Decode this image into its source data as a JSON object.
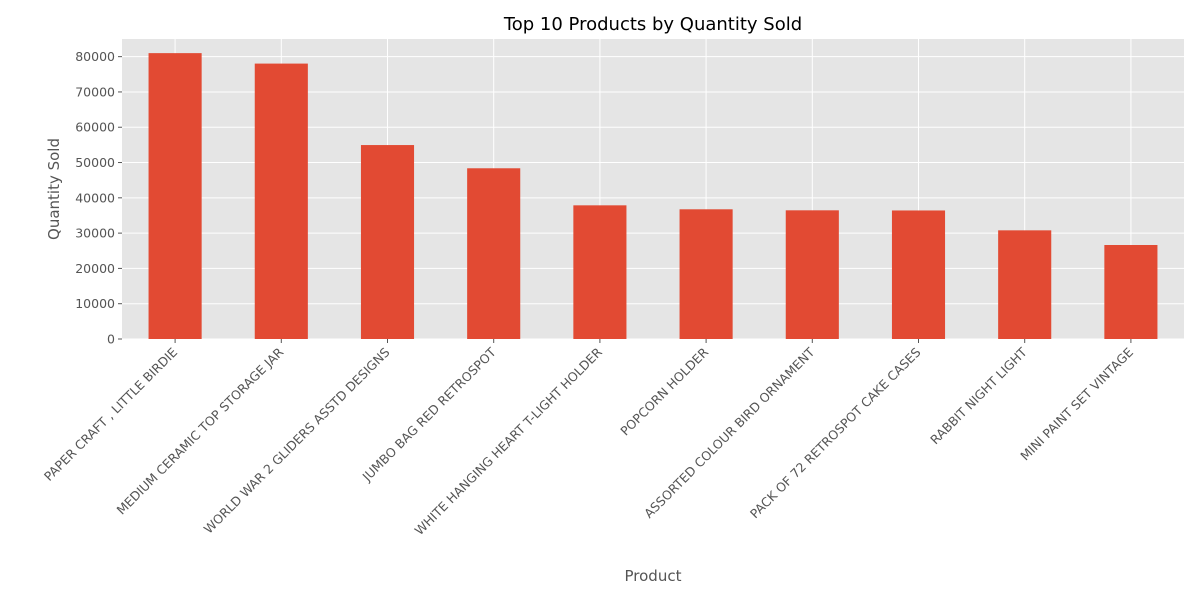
{
  "chart_data": {
    "type": "bar",
    "title": "Top 10 Products by Quantity Sold",
    "xlabel": "Product",
    "ylabel": "Quantity Sold",
    "categories": [
      "PAPER CRAFT , LITTLE BIRDIE",
      "MEDIUM CERAMIC TOP STORAGE JAR",
      "WORLD WAR 2 GLIDERS ASSTD DESIGNS",
      "JUMBO BAG RED RETROSPOT",
      "WHITE HANGING HEART T-LIGHT HOLDER",
      "POPCORN HOLDER",
      "ASSORTED COLOUR BIRD ORNAMENT",
      "PACK OF 72 RETROSPOT CAKE CASES",
      "RABBIT NIGHT LIGHT",
      "MINI PAINT SET VINTAGE"
    ],
    "values": [
      80995,
      78033,
      54951,
      48371,
      37872,
      36749,
      36461,
      36419,
      30788,
      26633
    ],
    "ylim": [
      0,
      85000
    ],
    "yticks": [
      0,
      10000,
      20000,
      30000,
      40000,
      50000,
      60000,
      70000,
      80000
    ],
    "grid": true,
    "legend": "none",
    "colors": {
      "bar": "#e24a33",
      "plot_background": "#e5e5e5",
      "grid": "#ffffff",
      "text": "#555555",
      "title": "#000000"
    }
  }
}
